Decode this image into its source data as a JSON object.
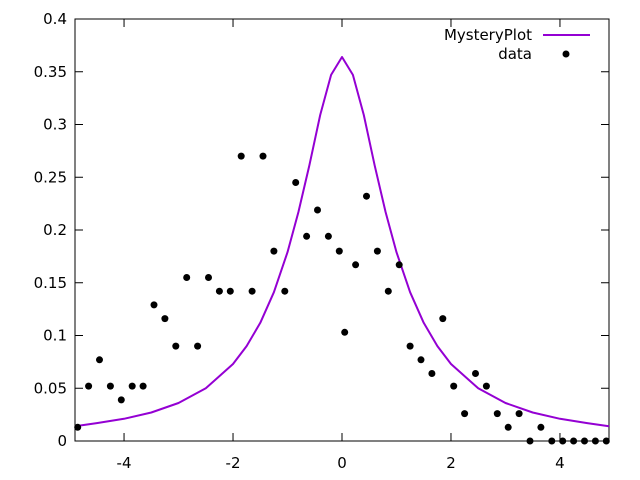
{
  "chart_data": {
    "type": "scatter",
    "xlim": [
      -4.9,
      4.9
    ],
    "ylim": [
      0,
      0.4
    ],
    "x_ticks": [
      -4,
      -2,
      0,
      2,
      4
    ],
    "y_ticks": [
      0,
      0.05,
      0.1,
      0.15,
      0.2,
      0.25,
      0.3,
      0.35,
      0.4
    ],
    "x_tick_labels": [
      "-4",
      "-2",
      "0",
      "2",
      "4"
    ],
    "y_tick_labels": [
      "0",
      "0.05",
      "0.1",
      "0.15",
      "0.2",
      "0.25",
      "0.3",
      "0.35",
      "0.4"
    ],
    "grid": false,
    "legend_position": "top-right",
    "series": [
      {
        "name": "MysteryPlot",
        "kind": "line",
        "color": "#9400d3",
        "x": [
          -4.9,
          -4.5,
          -4.0,
          -3.5,
          -3.0,
          -2.5,
          -2.0,
          -1.75,
          -1.5,
          -1.25,
          -1.0,
          -0.8,
          -0.6,
          -0.4,
          -0.2,
          0,
          0.2,
          0.4,
          0.6,
          0.8,
          1.0,
          1.25,
          1.5,
          1.75,
          2.0,
          2.5,
          3.0,
          3.5,
          4.0,
          4.5,
          4.9
        ],
        "values": [
          0.014,
          0.017,
          0.021,
          0.027,
          0.036,
          0.05,
          0.073,
          0.09,
          0.112,
          0.141,
          0.179,
          0.217,
          0.261,
          0.309,
          0.347,
          0.364,
          0.347,
          0.309,
          0.261,
          0.217,
          0.179,
          0.141,
          0.112,
          0.09,
          0.073,
          0.05,
          0.036,
          0.027,
          0.021,
          0.017,
          0.014
        ]
      },
      {
        "name": "data",
        "kind": "scatter",
        "color": "#000000",
        "x": [
          -4.85,
          -4.65,
          -4.45,
          -4.25,
          -4.05,
          -3.85,
          -3.65,
          -3.45,
          -3.25,
          -3.05,
          -2.85,
          -2.65,
          -2.45,
          -2.25,
          -2.05,
          -1.85,
          -1.65,
          -1.45,
          -1.25,
          -1.05,
          -0.85,
          -0.65,
          -0.45,
          -0.25,
          -0.05,
          0.05,
          0.25,
          0.45,
          0.65,
          0.85,
          1.05,
          1.25,
          1.45,
          1.65,
          1.85,
          2.05,
          2.25,
          2.45,
          2.65,
          2.85,
          3.05,
          3.25,
          3.45,
          3.65,
          3.85,
          4.05,
          4.25,
          4.45,
          4.65,
          4.85
        ],
        "values": [
          0.013,
          0.052,
          0.077,
          0.052,
          0.039,
          0.052,
          0.052,
          0.129,
          0.116,
          0.09,
          0.155,
          0.09,
          0.155,
          0.142,
          0.142,
          0.27,
          0.142,
          0.27,
          0.18,
          0.142,
          0.245,
          0.194,
          0.219,
          0.194,
          0.18,
          0.103,
          0.167,
          0.232,
          0.18,
          0.142,
          0.167,
          0.09,
          0.077,
          0.064,
          0.116,
          0.052,
          0.026,
          0.064,
          0.052,
          0.026,
          0.013,
          0.026,
          0.0,
          0.013,
          0.0,
          0.0,
          0.0,
          0.0,
          0.0,
          0.0
        ]
      }
    ]
  }
}
